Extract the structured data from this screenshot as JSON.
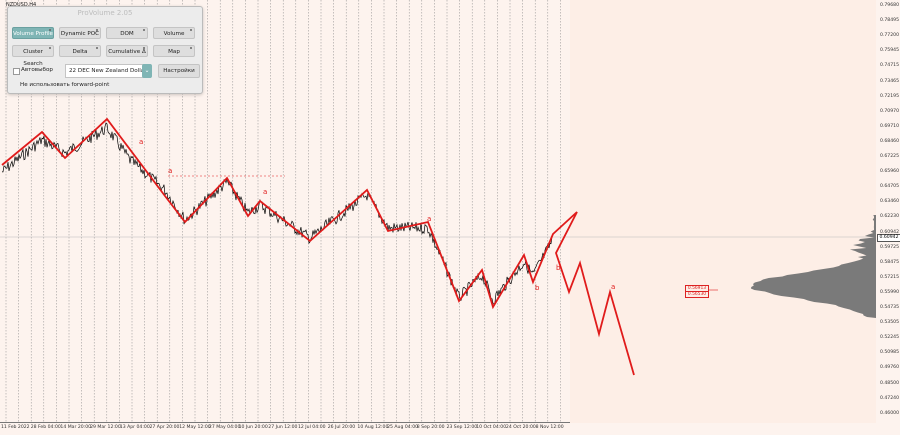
{
  "symbol": "NZDUSD,H4",
  "panel": {
    "title": "ProVolume 2.05",
    "buttons": [
      {
        "label": "Volume Profile",
        "active": true
      },
      {
        "label": "Dynamic POC",
        "active": false
      },
      {
        "label": "DOM",
        "active": false
      },
      {
        "label": "Volume",
        "active": false
      },
      {
        "label": "Cluster Search",
        "active": false
      },
      {
        "label": "Delta",
        "active": false
      },
      {
        "label": "Cumulative Δ",
        "active": false
      },
      {
        "label": "Map",
        "active": false
      }
    ],
    "autoselect_label": "Автовыбор",
    "instrument_value": "22 DEC New Zealand Dollar",
    "settings_label": "Настройки",
    "forward_point_label": "Не использовать forward-point"
  },
  "y_axis": [
    "0.79680",
    "0.78495",
    "0.77200",
    "0.75945",
    "0.74715",
    "0.73465",
    "0.72195",
    "0.70970",
    "0.69710",
    "0.68460",
    "0.67225",
    "0.65960",
    "0.64705",
    "0.63460",
    "0.62230",
    "0.60942",
    "0.59725",
    "0.58475",
    "0.57215",
    "0.55990",
    "0.54735",
    "0.53505",
    "0.52245",
    "0.50985",
    "0.49760",
    "0.48500",
    "0.47240",
    "0.46000"
  ],
  "current_price": "0.60942",
  "poc_labels": [
    "0.56913",
    "0.56530"
  ],
  "x_axis": [
    "11 Feb 2022",
    "28 Feb 04:00",
    "14 Mar 20:00",
    "29 Mar 12:00",
    "13 Apr 04:00",
    "27 Apr 20:00",
    "12 May 12:00",
    "27 May 04:00",
    "10 Jun 20:00",
    "27 Jun 12:00",
    "12 Jul 04:00",
    "26 Jul 20:00",
    "10 Aug 12:00",
    "25 Aug 04:00",
    "8 Sep 20:00",
    "23 Sep 12:00",
    "10 Oct 04:00",
    "24 Oct 20:00",
    "8 Nov 12:00"
  ],
  "wave_labels": [
    "a",
    "a",
    "a",
    "a",
    "b",
    "b",
    "a"
  ],
  "colors": {
    "wave": "#e01b1b",
    "price": "#000000",
    "profile": "#7a7a7a",
    "accent": "#7fb5b5"
  }
}
